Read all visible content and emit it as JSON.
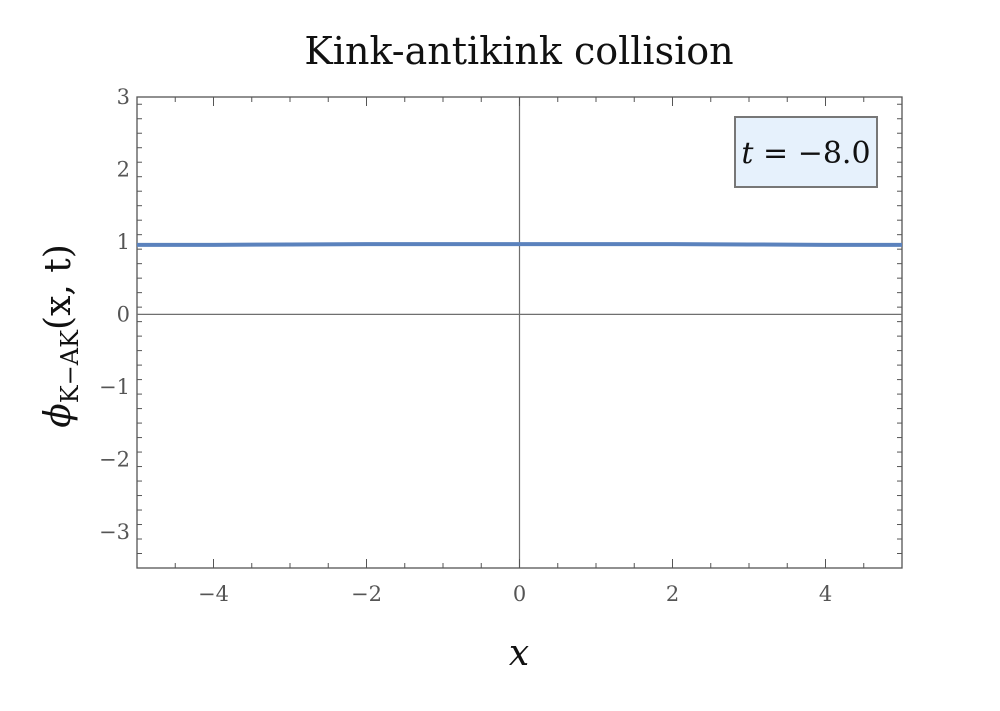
{
  "chart_data": {
    "type": "line",
    "title": "Kink-antikink collision",
    "xlabel": "x",
    "ylabel": {
      "symbol": "ϕ",
      "subscript": "K−AK",
      "args": "(x, t)"
    },
    "xlim": [
      -5,
      5
    ],
    "ylim": [
      -3.5,
      3
    ],
    "x_ticks": [
      -4,
      -2,
      0,
      2,
      4
    ],
    "x_tick_labels": [
      "−4",
      "−2",
      "0",
      "2",
      "4"
    ],
    "y_ticks": [
      -3,
      -2,
      -1,
      0,
      1,
      2,
      3
    ],
    "y_tick_labels": [
      "−3",
      "−2",
      "−1",
      "0",
      "1",
      "2",
      "3"
    ],
    "grid": false,
    "zero_axes": true,
    "annotation": {
      "var": "t",
      "value": "−8.0"
    },
    "series": [
      {
        "color": "#5b82bd",
        "x": [
          -5,
          -4,
          -3,
          -2,
          -1,
          0,
          1,
          2,
          3,
          4,
          5
        ],
        "y": [
          0.96,
          0.96,
          0.965,
          0.97,
          0.97,
          0.97,
          0.97,
          0.97,
          0.965,
          0.96,
          0.96
        ]
      }
    ],
    "colors": {
      "frame": "#555555",
      "zero_axis": "#6f6f6f",
      "legend_fill": "#e6f1fc",
      "legend_border": "#777777"
    }
  }
}
